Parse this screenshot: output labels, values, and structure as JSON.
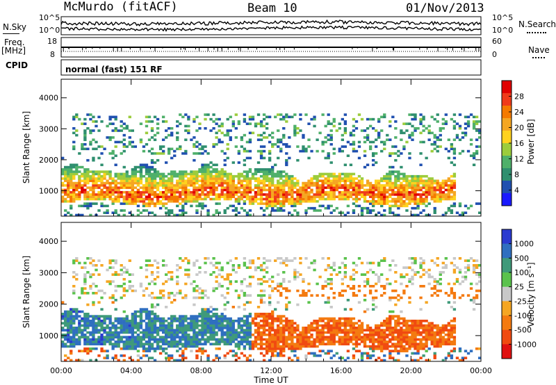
{
  "header": {
    "station": "McMurdo (fitACF)",
    "beam": "Beam 10",
    "date": "01/Nov/2013"
  },
  "noise_panel": {
    "left_label": "N.Sky",
    "right_label": "N.Search",
    "left_ticks": [
      "10^5",
      "10^0"
    ],
    "right_ticks": [
      "10^5",
      "10^0"
    ]
  },
  "freq_panel": {
    "left_label_1": "Freq.",
    "left_label_2": "[MHz]",
    "right_label": "Nave",
    "left_ticks": [
      "18",
      "8"
    ],
    "right_ticks": [
      "60",
      "0"
    ]
  },
  "cpid": {
    "label": "CPID",
    "value": "normal (fast) 151 RF"
  },
  "power_colorbar": {
    "label": "Power [dB]",
    "ticks": [
      "28",
      "24",
      "20",
      "16",
      "12",
      "8",
      "4"
    ],
    "colors": [
      "#e00000",
      "#f03a1a",
      "#f57a00",
      "#f5a623",
      "#ffd21e",
      "#9ccc3c",
      "#4fb06a",
      "#2f8f6f",
      "#2050b0",
      "#1a1aff"
    ]
  },
  "velocity_colorbar": {
    "label": "Velocity [m s⁻¹]",
    "ticks": [
      "1000",
      "500",
      "100",
      "25",
      "-25",
      "-100",
      "-500",
      "-1000"
    ],
    "colors": [
      "#2a3ad0",
      "#2f6fc0",
      "#3f9a7a",
      "#5ac24c",
      "#c8c8c8",
      "#f5a623",
      "#f47a10",
      "#f04a10",
      "#e01010"
    ]
  },
  "time_axis": {
    "label": "Time UT",
    "ticks": [
      "00:00",
      "04:00",
      "08:00",
      "12:00",
      "16:00",
      "20:00",
      "00:00"
    ]
  },
  "chart_data": [
    {
      "type": "heatmap",
      "quantity": "Power",
      "ylabel": "Slant Range [km]",
      "xlabel": "",
      "x_range_hours": [
        0,
        24
      ],
      "ylim": [
        180,
        4600
      ],
      "y_ticks": [
        1000,
        2000,
        3000,
        4000
      ],
      "color_scale": [
        0,
        30
      ],
      "features": [
        {
          "name": "main band",
          "t_start": 0,
          "t_end": 22.5,
          "range_low": 600,
          "range_high": 1700,
          "peak_dB": 28
        },
        {
          "name": "upper echoes",
          "t_start": 0.5,
          "t_end": 23.8,
          "range_low": 2200,
          "range_high": 3500,
          "peak_dB": 12
        }
      ]
    },
    {
      "type": "heatmap",
      "quantity": "Velocity",
      "ylabel": "Slant Range [km]",
      "xlabel": "Time UT",
      "x_range_hours": [
        0,
        24
      ],
      "ylim": [
        180,
        4600
      ],
      "y_ticks": [
        1000,
        2000,
        3000,
        4000
      ],
      "features": [
        {
          "name": "toward radar band",
          "t_start": 0,
          "t_end": 10.8,
          "range_low": 500,
          "range_high": 1700,
          "velocity": 300
        },
        {
          "name": "away from radar band",
          "t_start": 10.8,
          "t_end": 23,
          "range_low": 600,
          "range_high": 1700,
          "velocity": -300
        }
      ]
    }
  ]
}
